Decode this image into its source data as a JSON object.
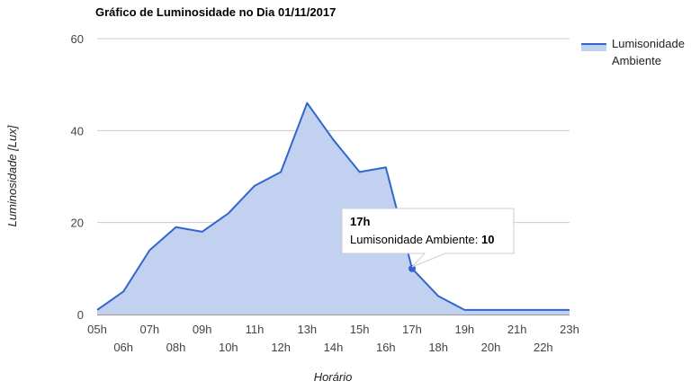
{
  "chart_data": {
    "type": "area",
    "title": "Gráfico de Luminosidade no Dia 01/11/2017",
    "xlabel": "Horário",
    "ylabel": "Luminosidade [Lux]",
    "ylim": [
      0,
      60
    ],
    "yticks": [
      "0",
      "20",
      "40",
      "60"
    ],
    "grid": true,
    "legend_position": "right",
    "categories": [
      "05h",
      "06h",
      "07h",
      "08h",
      "09h",
      "10h",
      "11h",
      "12h",
      "13h",
      "14h",
      "15h",
      "16h",
      "17h",
      "18h",
      "19h",
      "20h",
      "21h",
      "22h",
      "23h"
    ],
    "series": [
      {
        "name": "Lumisonidade Ambiente",
        "legend_lines": [
          "Lumisonidade",
          "Ambiente"
        ],
        "color": "#3366cc",
        "fill": "#c2d1f0",
        "values": [
          1,
          5,
          14,
          19,
          18,
          22,
          28,
          31,
          46,
          38,
          31,
          32,
          10,
          4,
          1,
          1,
          1,
          1,
          1
        ]
      }
    ],
    "tooltip": {
      "category": "17h",
      "series_label": "Lumisonidade Ambiente: ",
      "value": "10"
    }
  }
}
